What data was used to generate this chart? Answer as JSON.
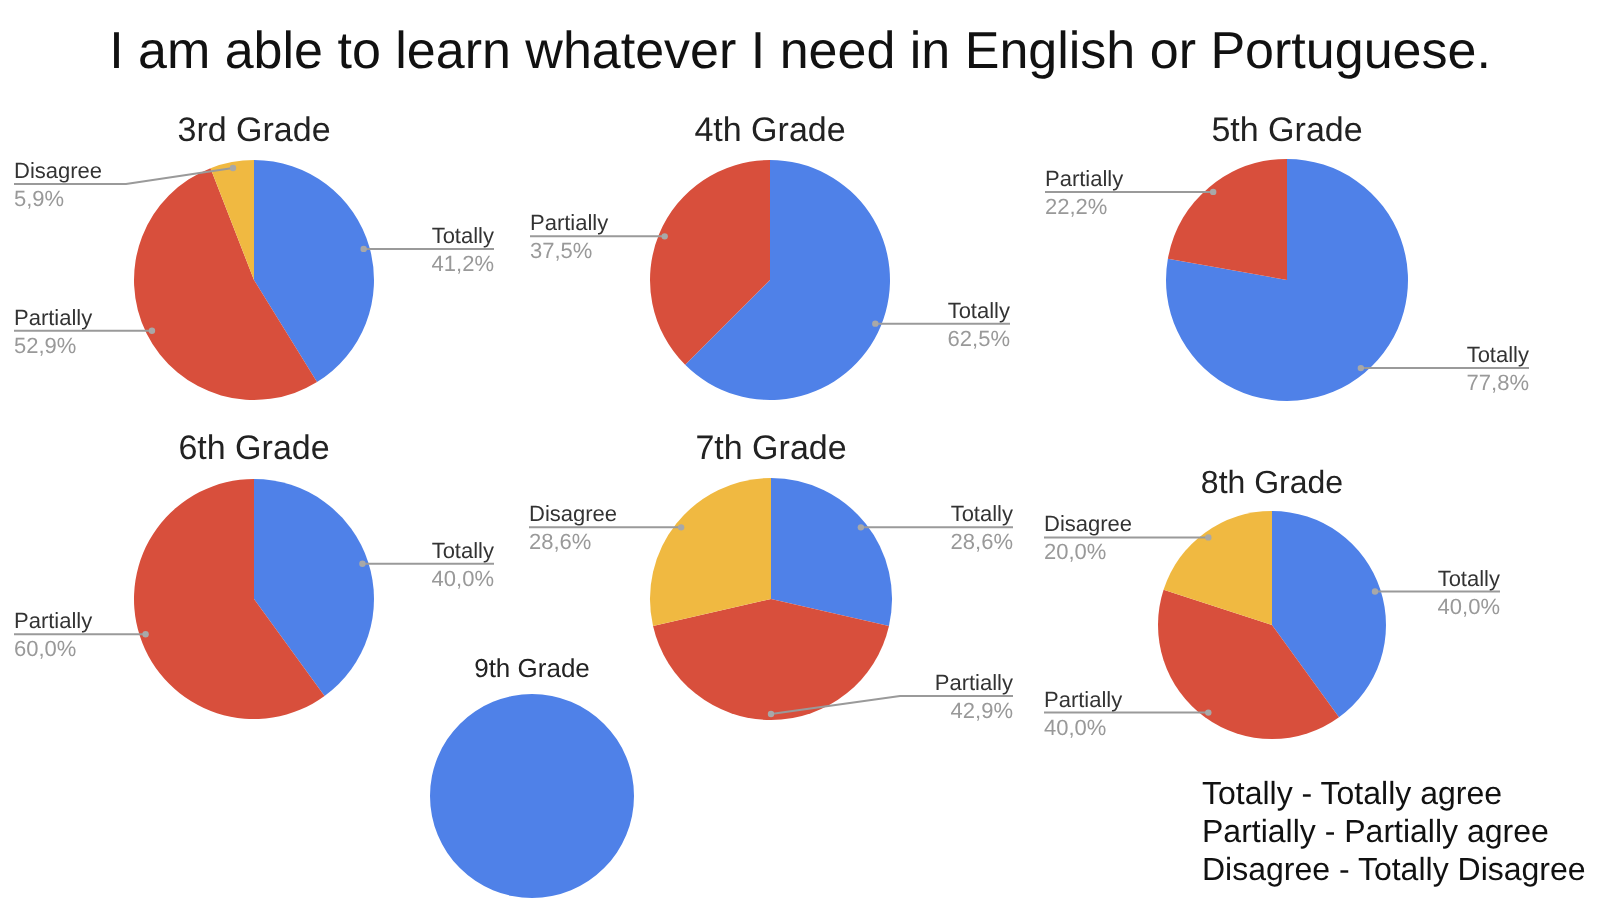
{
  "chart_data": [
    {
      "type": "other",
      "title": "I am able to learn whatever I need in English or Portuguese."
    },
    {
      "type": "pie",
      "title": "3rd Grade",
      "categories": [
        "Totally",
        "Partially",
        "Disagree"
      ],
      "values": [
        41.2,
        52.9,
        5.9
      ],
      "colors": [
        "#4f81e8",
        "#d84f3c",
        "#f0b941"
      ],
      "value_labels": [
        "41,2%",
        "52,9%",
        "5,9%"
      ]
    },
    {
      "type": "pie",
      "title": "4th Grade",
      "categories": [
        "Totally",
        "Partially"
      ],
      "values": [
        62.5,
        37.5
      ],
      "colors": [
        "#4f81e8",
        "#d84f3c"
      ],
      "value_labels": [
        "62,5%",
        "37,5%"
      ]
    },
    {
      "type": "pie",
      "title": "5th Grade",
      "categories": [
        "Totally",
        "Partially"
      ],
      "values": [
        77.8,
        22.2
      ],
      "colors": [
        "#4f81e8",
        "#d84f3c"
      ],
      "value_labels": [
        "77,8%",
        "22,2%"
      ]
    },
    {
      "type": "pie",
      "title": "6th Grade",
      "categories": [
        "Totally",
        "Partially"
      ],
      "values": [
        40,
        60
      ],
      "colors": [
        "#4f81e8",
        "#d84f3c"
      ],
      "value_labels": [
        "40,0%",
        "60,0%"
      ]
    },
    {
      "type": "pie",
      "title": "7th Grade",
      "categories": [
        "Totally",
        "Partially",
        "Disagree"
      ],
      "values": [
        28.6,
        42.9,
        28.6
      ],
      "colors": [
        "#4f81e8",
        "#d84f3c",
        "#f0b941"
      ],
      "value_labels": [
        "28,6%",
        "42,9%",
        "28,6%"
      ]
    },
    {
      "type": "pie",
      "title": "8th Grade",
      "categories": [
        "Totally",
        "Partially",
        "Disagree"
      ],
      "values": [
        40,
        40,
        20
      ],
      "colors": [
        "#4f81e8",
        "#d84f3c",
        "#f0b941"
      ],
      "value_labels": [
        "40,0%",
        "40,0%",
        "20,0%"
      ]
    },
    {
      "type": "pie",
      "title": "9th Grade",
      "categories": [
        null
      ],
      "values": [
        100
      ],
      "colors": [
        "#4f81e8"
      ]
    },
    {
      "type": "other",
      "annotations": [
        "Totally - Totally agree",
        "Partially - Partially agree",
        "Disagree - Totally Disagree"
      ]
    }
  ]
}
